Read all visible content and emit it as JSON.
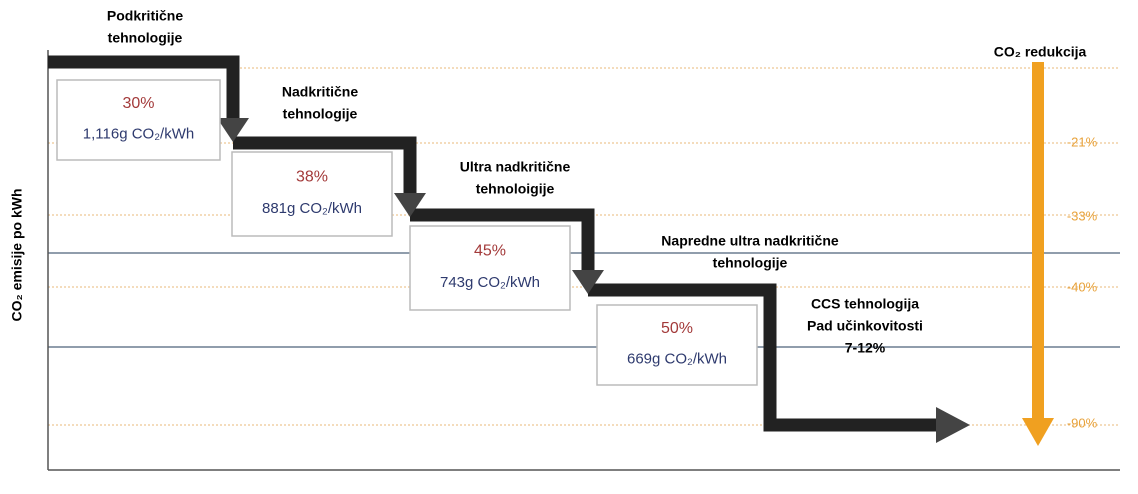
{
  "y_axis_label": "CO₂ emisije po kWh",
  "reduction_title": "CO₂ redukcija",
  "stages": [
    {
      "name_lines": [
        "Podkritične",
        "tehnologije"
      ],
      "efficiency": "30%",
      "emission": "1,116g CO₂/kWh"
    },
    {
      "name_lines": [
        "Nadkritične",
        "tehnologije"
      ],
      "efficiency": "38%",
      "emission": "881g CO₂/kWh"
    },
    {
      "name_lines": [
        "Ultra nadkritične",
        "tehnoloigije"
      ],
      "efficiency": "45%",
      "emission": "743g CO₂/kWh"
    },
    {
      "name_lines": [
        "Napredne ultra nadkritične",
        "tehnologije"
      ],
      "efficiency": "50%",
      "emission": "669g CO₂/kWh"
    },
    {
      "name_lines": [
        "CCS tehnologija",
        "Pad učinkovitosti",
        "7-12%"
      ]
    }
  ],
  "reductions": [
    "-21%",
    "-33%",
    "-40%",
    "-90%"
  ]
}
